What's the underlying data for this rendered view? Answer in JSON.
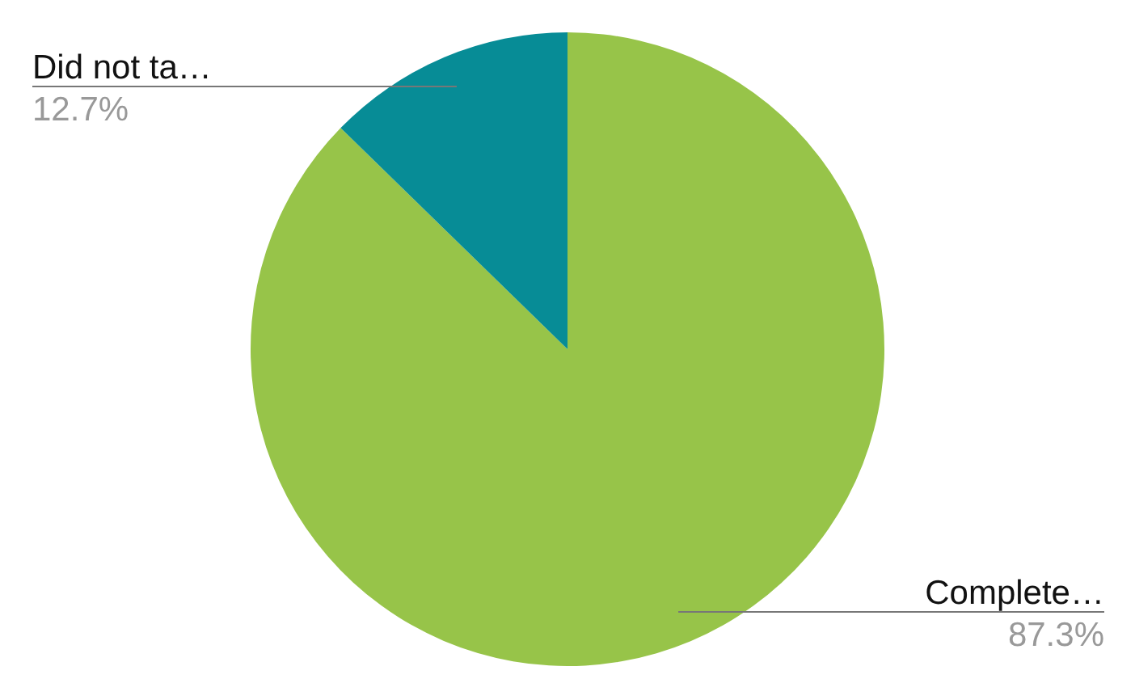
{
  "chart_data": {
    "type": "pie",
    "categories": [
      "Complete…",
      "Did not ta…"
    ],
    "values": [
      87.3,
      12.7
    ],
    "colors": [
      "#97c449",
      "#078c96"
    ],
    "value_labels": [
      "87.3%",
      "12.7%"
    ]
  }
}
